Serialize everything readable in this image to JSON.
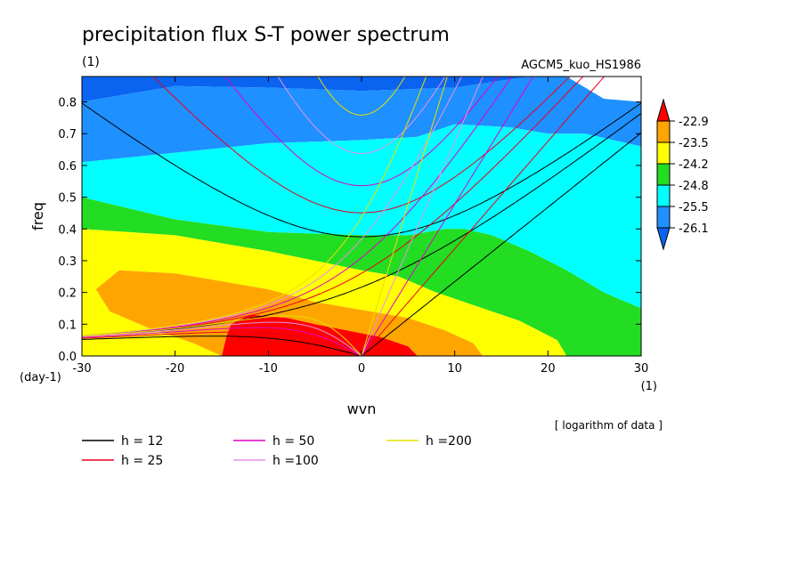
{
  "chart_data": {
    "type": "heatmap",
    "title": "precipitation flux S-T power spectrum",
    "subtitle_left": "(1)",
    "subtitle_right": "AGCM5_kuo_HS1986",
    "xlabel": "wvn",
    "ylabel": "freq",
    "x_unit": "(1)",
    "y_unit": "(day-1)",
    "xlim": [
      -30,
      30
    ],
    "ylim": [
      0,
      0.88
    ],
    "xticks": [
      -30,
      -20,
      -10,
      0,
      10,
      20,
      30
    ],
    "yticks": [
      0.0,
      0.1,
      0.2,
      0.3,
      0.4,
      0.5,
      0.6,
      0.7,
      0.8
    ],
    "note": "[ logarithm of data ]",
    "colorbar": {
      "levels": [
        "-22.9",
        "-23.5",
        "-24.2",
        "-24.8",
        "-25.5",
        "-26.1"
      ],
      "colors": [
        "#ff0000",
        "#ffa500",
        "#ffff00",
        "#22dd22",
        "#00ffff",
        "#1e90ff",
        "#0a64f0"
      ]
    },
    "filled_regions": [
      {
        "band": "below -26.1",
        "color": "#0a64f0",
        "boundary": [
          [
            -30,
            0.88
          ],
          [
            -30,
            0.8
          ],
          [
            -20,
            0.85
          ],
          [
            -10,
            0.845
          ],
          [
            0,
            0.835
          ],
          [
            10,
            0.845
          ],
          [
            18,
            0.88
          ]
        ]
      },
      {
        "band": "-26.1 to -25.5",
        "color": "#1e90ff",
        "boundary": [
          [
            -30,
            0.8
          ],
          [
            -20,
            0.85
          ],
          [
            -10,
            0.845
          ],
          [
            0,
            0.835
          ],
          [
            10,
            0.845
          ],
          [
            18,
            0.88
          ],
          [
            22,
            0.88
          ],
          [
            26,
            0.81
          ],
          [
            30,
            0.8
          ],
          [
            30,
            0.66
          ],
          [
            24,
            0.7
          ],
          [
            20,
            0.7
          ],
          [
            16,
            0.72
          ],
          [
            10,
            0.73
          ],
          [
            6,
            0.69
          ],
          [
            0,
            0.68
          ],
          [
            -10,
            0.67
          ],
          [
            -20,
            0.64
          ],
          [
            -30,
            0.61
          ]
        ]
      },
      {
        "band": "-25.5 to -24.8",
        "color": "#00ffff",
        "boundary": [
          [
            -30,
            0.61
          ],
          [
            -20,
            0.64
          ],
          [
            -10,
            0.67
          ],
          [
            0,
            0.68
          ],
          [
            6,
            0.69
          ],
          [
            10,
            0.73
          ],
          [
            16,
            0.72
          ],
          [
            20,
            0.7
          ],
          [
            24,
            0.7
          ],
          [
            30,
            0.66
          ],
          [
            30,
            0.15
          ],
          [
            26,
            0.2
          ],
          [
            22,
            0.27
          ],
          [
            18,
            0.33
          ],
          [
            14,
            0.38
          ],
          [
            11,
            0.4
          ],
          [
            9,
            0.4
          ],
          [
            5,
            0.38
          ],
          [
            0,
            0.38
          ],
          [
            -10,
            0.39
          ],
          [
            -20,
            0.43
          ],
          [
            -30,
            0.5
          ]
        ]
      },
      {
        "band": "-24.8 to -24.2",
        "color": "#22dd22",
        "boundary": [
          [
            -30,
            0.5
          ],
          [
            -20,
            0.43
          ],
          [
            -10,
            0.39
          ],
          [
            0,
            0.38
          ],
          [
            5,
            0.38
          ],
          [
            9,
            0.4
          ],
          [
            11,
            0.4
          ],
          [
            14,
            0.38
          ],
          [
            18,
            0.33
          ],
          [
            22,
            0.27
          ],
          [
            26,
            0.2
          ],
          [
            30,
            0.15
          ],
          [
            30,
            0
          ],
          [
            22,
            0
          ],
          [
            21,
            0.05
          ],
          [
            17,
            0.11
          ],
          [
            12,
            0.16
          ],
          [
            8,
            0.2
          ],
          [
            4,
            0.25
          ],
          [
            0,
            0.27
          ],
          [
            -10,
            0.33
          ],
          [
            -20,
            0.38
          ],
          [
            -30,
            0.4
          ]
        ]
      },
      {
        "band": "-24.2 to -23.5",
        "color": "#ffff00",
        "boundary": [
          [
            -30,
            0.4
          ],
          [
            -20,
            0.38
          ],
          [
            -10,
            0.33
          ],
          [
            0,
            0.27
          ],
          [
            4,
            0.25
          ],
          [
            8,
            0.2
          ],
          [
            12,
            0.16
          ],
          [
            17,
            0.11
          ],
          [
            21,
            0.05
          ],
          [
            22,
            0
          ],
          [
            13,
            0
          ],
          [
            12,
            0.04
          ],
          [
            9,
            0.08
          ],
          [
            5,
            0.12
          ],
          [
            -5,
            0.17
          ],
          [
            -10,
            0.21
          ],
          [
            -20,
            0.26
          ],
          [
            -26,
            0.27
          ],
          [
            -28.5,
            0.21
          ],
          [
            -27,
            0.14
          ],
          [
            -23,
            0.09
          ],
          [
            -18,
            0.04
          ],
          [
            -15,
            0
          ],
          [
            -30,
            0
          ]
        ]
      },
      {
        "band": "-23.5 to -22.9",
        "color": "#ffa500",
        "boundary": [
          [
            -26,
            0.27
          ],
          [
            -20,
            0.26
          ],
          [
            -10,
            0.21
          ],
          [
            -5,
            0.17
          ],
          [
            5,
            0.12
          ],
          [
            9,
            0.08
          ],
          [
            12,
            0.04
          ],
          [
            13,
            0
          ],
          [
            6,
            0
          ],
          [
            5,
            0.03
          ],
          [
            2,
            0.06
          ],
          [
            -5,
            0.1
          ],
          [
            -8,
            0.12
          ],
          [
            -12,
            0.13
          ],
          [
            -14,
            0.1
          ],
          [
            -14.5,
            0.06
          ],
          [
            -15,
            0
          ],
          [
            -18,
            0.04
          ],
          [
            -23,
            0.09
          ],
          [
            -27,
            0.14
          ],
          [
            -28.5,
            0.21
          ]
        ]
      },
      {
        "band": "above -22.9",
        "color": "#ff0000",
        "boundary": [
          [
            -15,
            0
          ],
          [
            -14.5,
            0.06
          ],
          [
            -14,
            0.1
          ],
          [
            -12,
            0.13
          ],
          [
            -8,
            0.12
          ],
          [
            -5,
            0.1
          ],
          [
            2,
            0.06
          ],
          [
            5,
            0.03
          ],
          [
            6,
            0
          ],
          [
            -15,
            0
          ]
        ]
      }
    ],
    "dispersion_curves": [
      {
        "name": "h = 12",
        "color": "#000000"
      },
      {
        "name": "h = 25",
        "color": "#e8001c"
      },
      {
        "name": "h = 50",
        "color": "#e000c8"
      },
      {
        "name": "h =100",
        "color": "#e890e8"
      },
      {
        "name": "h =200",
        "color": "#e8e000"
      }
    ]
  }
}
